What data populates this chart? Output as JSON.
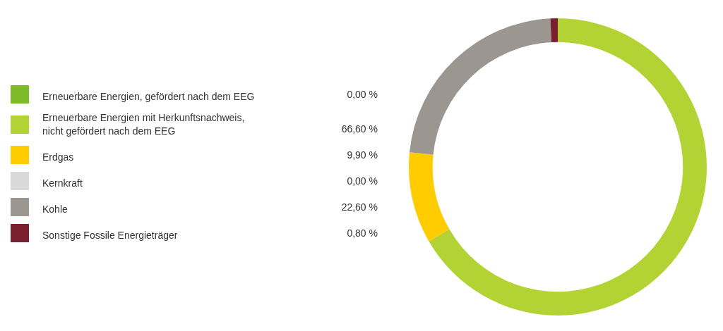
{
  "chart_data": {
    "type": "donut",
    "legend": "left",
    "categories": [
      "Erneuerbare Energien, gefördert nach dem EEG",
      "Erneuerbare Energien mit Herkunftsnachweis,\nnicht gefördert nach dem EEG",
      "Erdgas",
      "Kernkraft",
      "Kohle",
      "Sonstige Fossile Energieträger"
    ],
    "values": [
      0,
      66.6,
      9.9,
      0,
      22.6,
      0.8
    ],
    "value_labels": [
      "0,00 %",
      "66,60 %",
      "9,90 %",
      "0,00 %",
      "22,60 %",
      "0,80 %"
    ],
    "colors": [
      "#7dbb2a",
      "#b3d335",
      "#ffcc00",
      "#d9d9d9",
      "#9c9691",
      "#7a1f2e"
    ]
  }
}
